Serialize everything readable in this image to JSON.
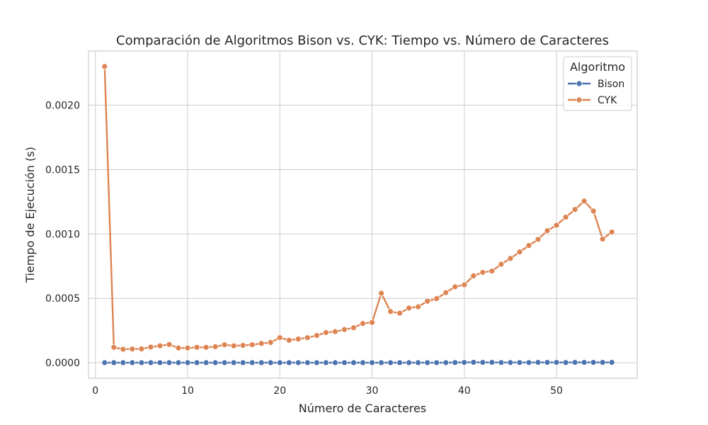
{
  "chart_data": {
    "type": "line",
    "title": "Comparación de Algoritmos Bison vs. CYK: Tiempo vs. Número de Caracteres",
    "xlabel": "Número de Caracteres",
    "ylabel": "Tiempo de Ejecución (s)",
    "xlim": [
      -0.75,
      58.75
    ],
    "ylim": [
      -0.00012,
      0.00242
    ],
    "xticks": [
      0,
      10,
      20,
      30,
      40,
      50
    ],
    "yticks": [
      0.0,
      0.0005,
      0.001,
      0.0015,
      0.002
    ],
    "ytick_labels": [
      "0.0000",
      "0.0005",
      "0.0010",
      "0.0015",
      "0.0020"
    ],
    "grid": true,
    "legend": {
      "title": "Algoritmo",
      "position": "top-right"
    },
    "x": [
      1,
      2,
      3,
      4,
      5,
      6,
      7,
      8,
      9,
      10,
      11,
      12,
      13,
      14,
      15,
      16,
      17,
      18,
      19,
      20,
      21,
      22,
      23,
      24,
      25,
      26,
      27,
      28,
      29,
      30,
      31,
      32,
      33,
      34,
      35,
      36,
      37,
      38,
      39,
      40,
      41,
      42,
      43,
      44,
      45,
      46,
      47,
      48,
      49,
      50,
      51,
      52,
      53,
      54,
      55,
      56
    ],
    "series": [
      {
        "name": "Bison",
        "color": "#4c72b0",
        "values": [
          1e-06,
          1e-06,
          1e-06,
          1e-06,
          1e-06,
          1e-06,
          1e-06,
          1e-06,
          1e-06,
          1e-06,
          1e-06,
          1e-06,
          1e-06,
          1e-06,
          1e-06,
          1e-06,
          1e-06,
          1e-06,
          1e-06,
          1e-06,
          1e-06,
          1e-06,
          1e-06,
          1e-06,
          1e-06,
          1e-06,
          1e-06,
          1e-06,
          1e-06,
          1e-06,
          1e-06,
          1e-06,
          1e-06,
          1e-06,
          1e-06,
          1e-06,
          1e-06,
          1e-06,
          2e-06,
          3e-06,
          4e-06,
          3e-06,
          3e-06,
          2e-06,
          2e-06,
          2e-06,
          2e-06,
          3e-06,
          3e-06,
          3e-06,
          2e-06,
          3e-06,
          3e-06,
          3e-06,
          3e-06,
          3e-06
        ]
      },
      {
        "name": "CYK",
        "color": "#dd8452",
        "values": [
          0.0023,
          0.00012,
          0.000105,
          0.000107,
          0.000108,
          0.000122,
          0.000132,
          0.000142,
          0.000115,
          0.000115,
          0.00012,
          0.00012,
          0.000125,
          0.00014,
          0.000132,
          0.000135,
          0.00014,
          0.00015,
          0.000158,
          0.000195,
          0.000175,
          0.000185,
          0.000195,
          0.000212,
          0.000235,
          0.000242,
          0.000258,
          0.000272,
          0.000305,
          0.000313,
          0.00054,
          0.000398,
          0.000385,
          0.000425,
          0.000435,
          0.000478,
          0.000498,
          0.000545,
          0.00059,
          0.000605,
          0.000675,
          0.000702,
          0.000712,
          0.000765,
          0.00081,
          0.00086,
          0.00091,
          0.000958,
          0.001025,
          0.001068,
          0.00113,
          0.00119,
          0.001255,
          0.001178,
          0.00096,
          0.001015
        ]
      }
    ]
  }
}
